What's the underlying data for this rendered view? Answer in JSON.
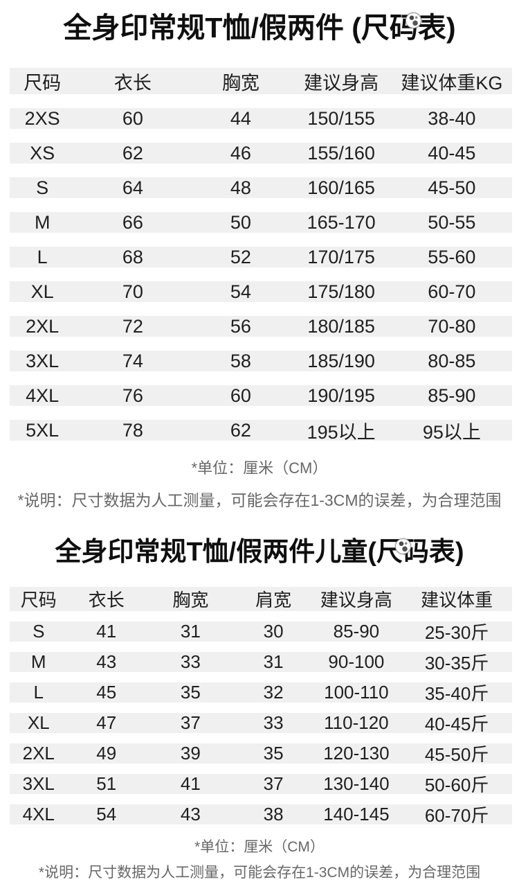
{
  "page": {
    "background_color": "#ffffff",
    "stripe_color": "#f0f0f0",
    "title_color": "#0f0f0f",
    "note_color": "#676767"
  },
  "chart_data": [
    {
      "type": "table",
      "title": "全身印常规T恤/假两件 (尺码表)",
      "columns": [
        "尺码",
        "衣长",
        "胸宽",
        "建议身高",
        "建议体重KG"
      ],
      "rows": [
        [
          "2XS",
          "60",
          "44",
          "150/155",
          "38-40"
        ],
        [
          "XS",
          "62",
          "46",
          "155/160",
          "40-45"
        ],
        [
          "S",
          "64",
          "48",
          "160/165",
          "45-50"
        ],
        [
          "M",
          "66",
          "50",
          "165-170",
          "50-55"
        ],
        [
          "L",
          "68",
          "52",
          "170/175",
          "55-60"
        ],
        [
          "XL",
          "70",
          "54",
          "175/180",
          "60-70"
        ],
        [
          "2XL",
          "72",
          "56",
          "180/185",
          "70-80"
        ],
        [
          "3XL",
          "74",
          "58",
          "185/190",
          "80-85"
        ],
        [
          "4XL",
          "76",
          "60",
          "190/195",
          "85-90"
        ],
        [
          "5XL",
          "78",
          "62",
          "195以上",
          "95以上"
        ]
      ],
      "notes": {
        "unit": "*单位：厘米（CM）",
        "desc": "*说明：尺寸数据为人工测量，可能会存在1-3CM的误差，为合理范围"
      }
    },
    {
      "type": "table",
      "title": "全身印常规T恤/假两件儿童(尺码表)",
      "columns": [
        "尺码",
        "衣长",
        "胸宽",
        "肩宽",
        "建议身高",
        "建议体重"
      ],
      "rows": [
        [
          "S",
          "41",
          "31",
          "30",
          "85-90",
          "25-30斤"
        ],
        [
          "M",
          "43",
          "33",
          "31",
          "90-100",
          "30-35斤"
        ],
        [
          "L",
          "45",
          "35",
          "32",
          "100-110",
          "35-40斤"
        ],
        [
          "XL",
          "47",
          "37",
          "33",
          "110-120",
          "40-45斤"
        ],
        [
          "2XL",
          "49",
          "39",
          "35",
          "120-130",
          "45-50斤"
        ],
        [
          "3XL",
          "51",
          "41",
          "37",
          "130-140",
          "50-60斤"
        ],
        [
          "4XL",
          "54",
          "43",
          "38",
          "140-145",
          "60-70斤"
        ]
      ],
      "notes": {
        "unit": "*单位：厘米（CM）",
        "desc": "*说明：尺寸数据为人工测量，可能会存在1-3CM的误差，为合理范围"
      }
    }
  ]
}
